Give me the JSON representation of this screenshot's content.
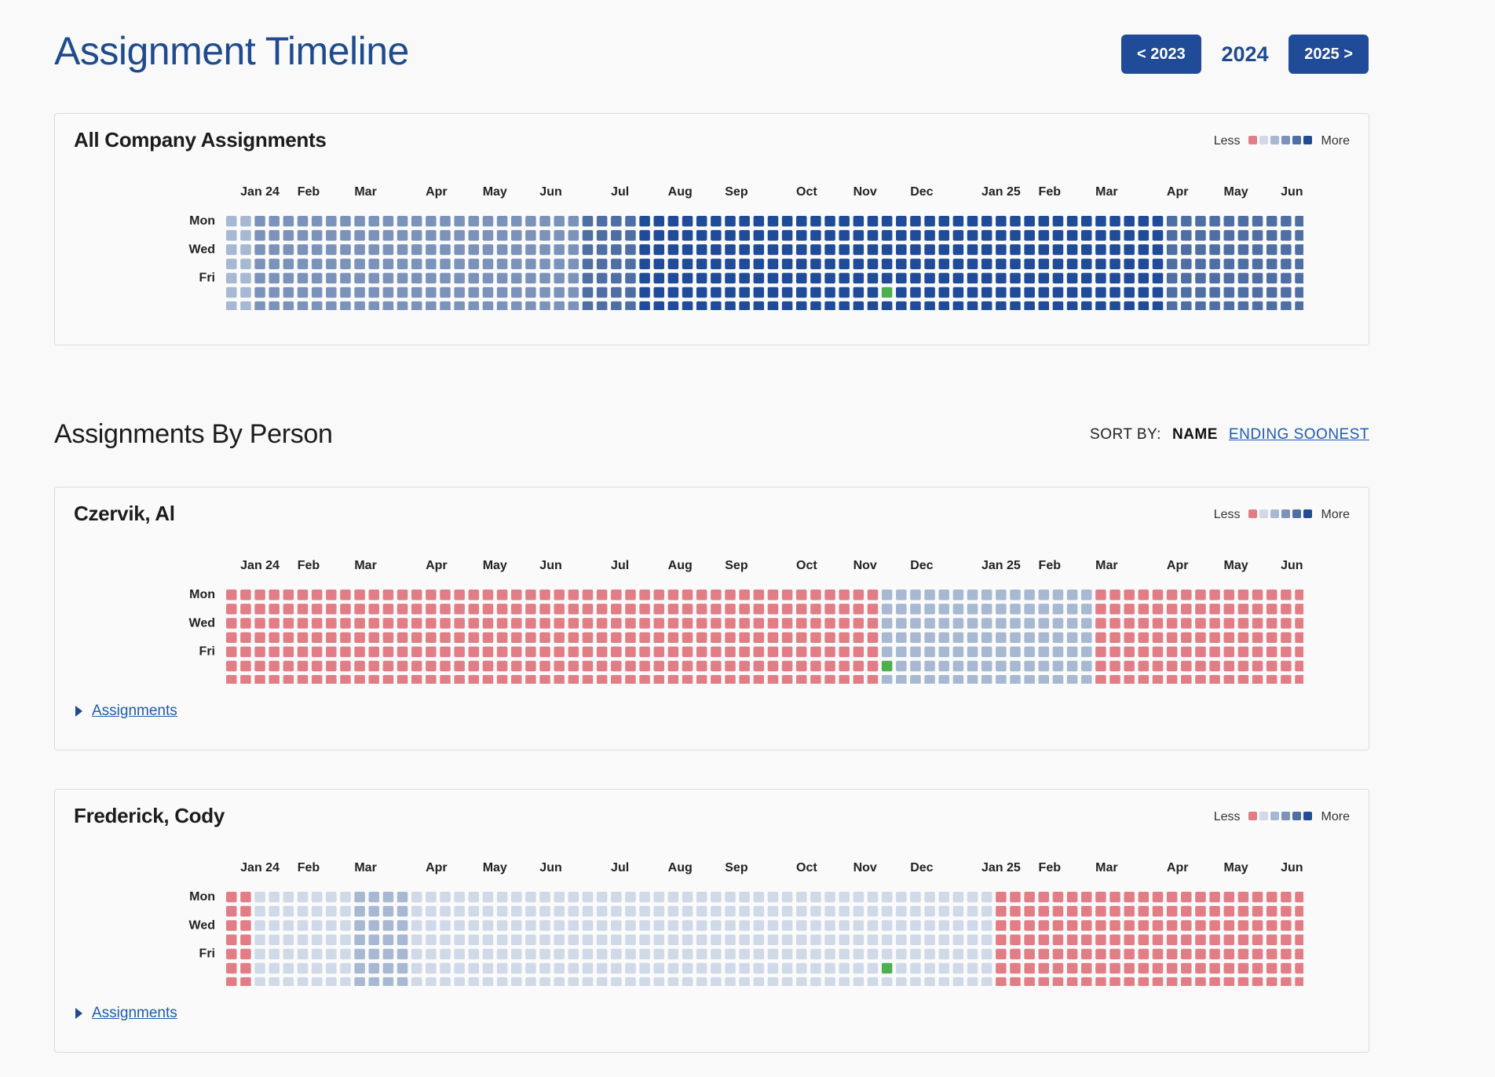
{
  "header": {
    "title": "Assignment Timeline",
    "prev_label": "< 2023",
    "current_year": "2024",
    "next_label": "2025 >"
  },
  "legend": {
    "less": "Less",
    "more": "More",
    "colors": [
      "#e27d86",
      "#d0d9e8",
      "#a7b8d3",
      "#7b93bb",
      "#4f6fa4",
      "#1f4b99"
    ]
  },
  "colors": {
    "unassigned": "#e27d86",
    "level1": "#d0d9e8",
    "level2": "#a7b8d3",
    "level3": "#7b93bb",
    "level4": "#4f6fa4",
    "level5": "#1f4b99",
    "today": "#4caf50",
    "primary": "#1f4b99",
    "link": "#1f5bb5"
  },
  "heatmap": {
    "months": [
      "Jan 24",
      "Feb",
      "Mar",
      "Apr",
      "May",
      "Jun",
      "Jul",
      "Aug",
      "Sep",
      "Oct",
      "Nov",
      "Dec",
      "Jan 25",
      "Feb",
      "Mar",
      "Apr",
      "May",
      "Jun"
    ],
    "month_start_weeks": [
      1,
      5,
      9,
      14,
      18,
      22,
      27,
      31,
      35,
      40,
      44,
      48,
      53,
      57,
      61,
      66,
      70,
      74
    ],
    "day_labels": [
      "Mon",
      "",
      "Wed",
      "",
      "Fri",
      "",
      ""
    ],
    "total_weeks": 79,
    "today_week": 46,
    "today_day": 5,
    "today_marker": "▲"
  },
  "company": {
    "title": "All Company Assignments",
    "segments": [
      {
        "from": 0,
        "to": 1,
        "level": 2
      },
      {
        "from": 2,
        "to": 19,
        "level": 3
      },
      {
        "from": 20,
        "to": 24,
        "level": 3
      },
      {
        "from": 25,
        "to": 28,
        "level": 4
      },
      {
        "from": 29,
        "to": 65,
        "level": 5
      },
      {
        "from": 66,
        "to": 78,
        "level": 4
      }
    ]
  },
  "section": {
    "title": "Assignments By Person",
    "sort_label": "SORT BY:",
    "sort_name": "NAME",
    "sort_ending": "ENDING SOONEST"
  },
  "people": [
    {
      "name": "Czervik, Al",
      "link": "Assignments",
      "segments": [
        {
          "from": 0,
          "to": 45,
          "level": 0
        },
        {
          "from": 46,
          "to": 60,
          "level": 2
        },
        {
          "from": 61,
          "to": 78,
          "level": 0
        }
      ]
    },
    {
      "name": "Frederick, Cody",
      "link": "Assignments",
      "segments": [
        {
          "from": 0,
          "to": 1,
          "level": 0
        },
        {
          "from": 2,
          "to": 8,
          "level": 1
        },
        {
          "from": 9,
          "to": 12,
          "level": 2
        },
        {
          "from": 13,
          "to": 53,
          "level": 1
        },
        {
          "from": 54,
          "to": 78,
          "level": 0
        }
      ]
    }
  ]
}
